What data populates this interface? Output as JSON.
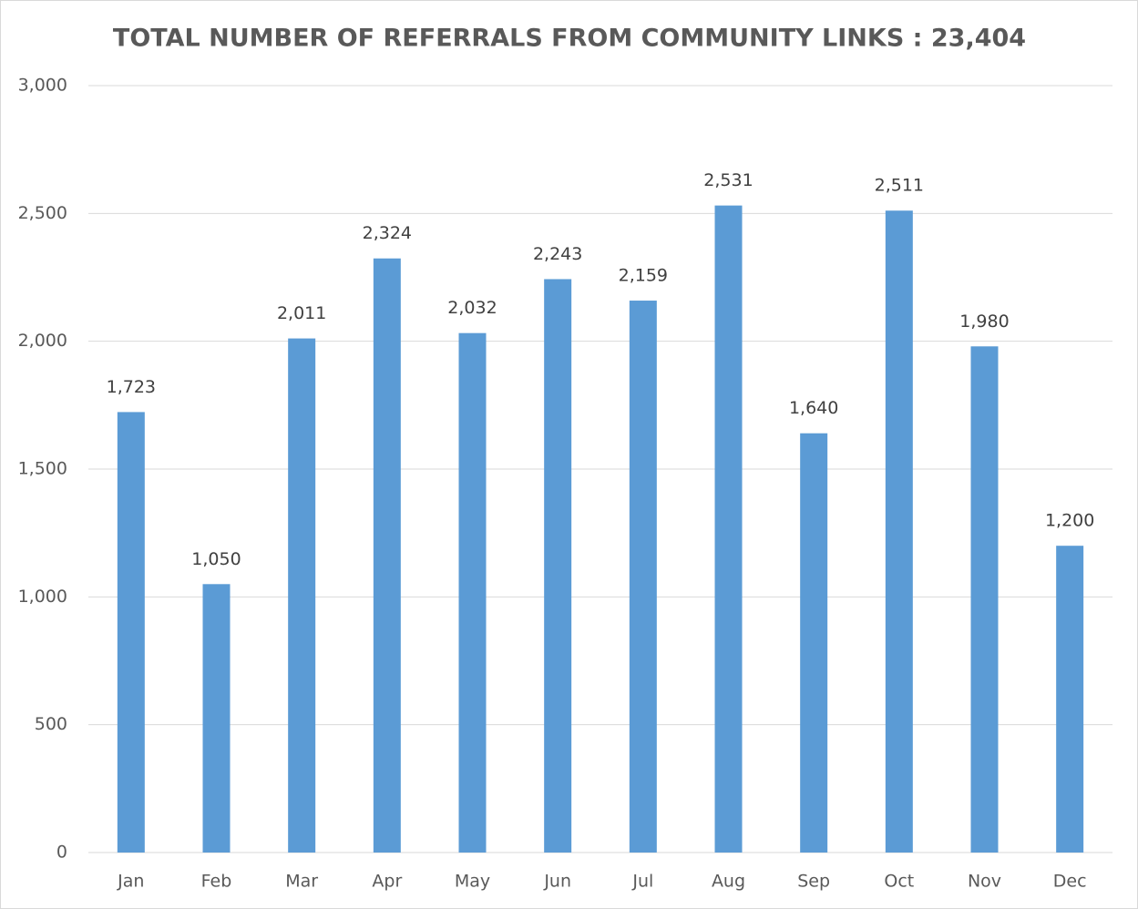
{
  "chart_data": {
    "type": "bar",
    "title": "TOTAL NUMBER OF REFERRALS FROM COMMUNITY LINKS : 23,404",
    "categories": [
      "Jan",
      "Feb",
      "Mar",
      "Apr",
      "May",
      "Jun",
      "Jul",
      "Aug",
      "Sep",
      "Oct",
      "Nov",
      "Dec"
    ],
    "values": [
      1723,
      1050,
      2011,
      2324,
      2032,
      2243,
      2159,
      2531,
      1640,
      2511,
      1980,
      1200
    ],
    "value_labels": [
      "1,723",
      "1,050",
      "2,011",
      "2,324",
      "2,032",
      "2,243",
      "2,159",
      "2,531",
      "1,640",
      "2,511",
      "1,980",
      "1,200"
    ],
    "color": "#5b9bd5",
    "ylim": [
      0,
      3000
    ],
    "yticks": [
      0,
      500,
      {
        "value": 1000,
        "label": "1,000"
      },
      {
        "value": 1500,
        "label": "1,500"
      },
      {
        "value": 2000,
        "label": "2,000"
      },
      {
        "value": 2500,
        "label": "2,500"
      },
      {
        "value": 3000,
        "label": "3,000"
      }
    ],
    "grid": true
  }
}
